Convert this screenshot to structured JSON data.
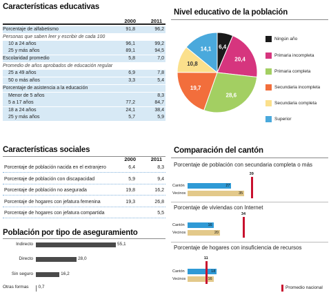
{
  "educ": {
    "title": "Características educativas",
    "col1": "2000",
    "col2": "2011",
    "rows": [
      {
        "label": "Porcentaje de alfabetismo",
        "v1": "91,8",
        "v2": "96,2",
        "style": "bold"
      },
      {
        "label": "Personas que saben leer y escribir de cada 100",
        "v1": "",
        "v2": "",
        "style": "note"
      },
      {
        "label": "10 a 24 años",
        "v1": "96,1",
        "v2": "99,2",
        "style": "sub"
      },
      {
        "label": "25 y más años",
        "v1": "89,1",
        "v2": "94,5",
        "style": "sub"
      },
      {
        "label": "Escolaridad promedio",
        "v1": "5,8",
        "v2": "7,0",
        "style": "bold"
      },
      {
        "label": "Promedio de años aprobados de educación regular",
        "v1": "",
        "v2": "",
        "style": "note"
      },
      {
        "label": "25 a 49 años",
        "v1": "6,9",
        "v2": "7,8",
        "style": "sub"
      },
      {
        "label": "50 o más años",
        "v1": "3,3",
        "v2": "5,4",
        "style": "sub"
      },
      {
        "label": "Porcentaje de asistencia a la educación",
        "v1": "",
        "v2": "",
        "style": "bold"
      },
      {
        "label": "Menor de 5 años",
        "v1": "",
        "v2": "8,3",
        "style": "sub"
      },
      {
        "label": "5 a 17 años",
        "v1": "77,2",
        "v2": "84,7",
        "style": "sub"
      },
      {
        "label": "18 a 24 años",
        "v1": "24,1",
        "v2": "38,4",
        "style": "sub"
      },
      {
        "label": "25 y más años",
        "v1": "5,7",
        "v2": "5,9",
        "style": "sub"
      }
    ]
  },
  "social": {
    "title": "Características sociales",
    "col1": "2000",
    "col2": "2011",
    "rows": [
      {
        "label": "Porcentaje de población nacida en el extranjero",
        "v1": "6,4",
        "v2": "8,3"
      },
      {
        "label": "Porcentaje de población con discapacidad",
        "v1": "5,9",
        "v2": "9,4"
      },
      {
        "label": "Porcentaje de población no asegurada",
        "v1": "19,8",
        "v2": "16,2"
      },
      {
        "label": "Porcentaje de hogares con jefatura femenina",
        "v1": "19,3",
        "v2": "26,8"
      },
      {
        "label": "Porcentaje de hogares con jefatura compartida",
        "v1": "",
        "v2": "5,5"
      }
    ]
  },
  "seguro": {
    "title": "Población por tipo de aseguramiento",
    "chart_data": {
      "type": "bar",
      "categories": [
        "Indirecto",
        "Directo",
        "Sin seguro",
        "Otras formas"
      ],
      "values": [
        55.1,
        28.0,
        16.2,
        0.7
      ],
      "value_labels": [
        "55,1",
        "28,0",
        "16,2",
        "0,7"
      ]
    }
  },
  "nivel": {
    "title": "Nivel educativo de la población",
    "chart_data": {
      "type": "pie",
      "categories": [
        "Ningún año",
        "Primaria incompleta",
        "Primaria completa",
        "Secundaria incompleta",
        "Secundaria completa",
        "Superior"
      ],
      "values": [
        6.4,
        20.4,
        28.6,
        19.7,
        10.8,
        14.1
      ],
      "value_labels": [
        "6,4",
        "20,4",
        "28,6",
        "19,7",
        "10,8",
        "14,1"
      ],
      "colors": [
        "#1a1a1a",
        "#d6357e",
        "#a3cf62",
        "#f26e3c",
        "#fbe08c",
        "#4aa9dc"
      ]
    }
  },
  "canton": {
    "title": "Comparación del cantón",
    "canton_label": "Cantón",
    "vecinos_label": "Vecinos",
    "legend": "Promedio nacional",
    "colors": {
      "canton": "#2f9ad6",
      "vecinos": "#e3c98a",
      "nacional": "#c8102e"
    },
    "chart_data": [
      {
        "type": "bar",
        "title": "Porcentaje de población con secundaria completa o más",
        "series": [
          {
            "name": "Cantón",
            "values": [
              27
            ]
          },
          {
            "name": "Vecinos",
            "values": [
              35
            ]
          }
        ],
        "nacional": 39
      },
      {
        "type": "bar",
        "title": "Porcentaje de viviendas con Internet",
        "series": [
          {
            "name": "Cantón",
            "values": [
              16
            ]
          },
          {
            "name": "Vecinos",
            "values": [
              20
            ]
          }
        ],
        "nacional": 34
      },
      {
        "type": "bar",
        "title": "Porcentaje de hogares con insuficiencia de recursos",
        "series": [
          {
            "name": "Cantón",
            "values": [
              18
            ]
          },
          {
            "name": "Vecinos",
            "values": [
              16
            ]
          }
        ],
        "nacional": 11
      }
    ]
  }
}
